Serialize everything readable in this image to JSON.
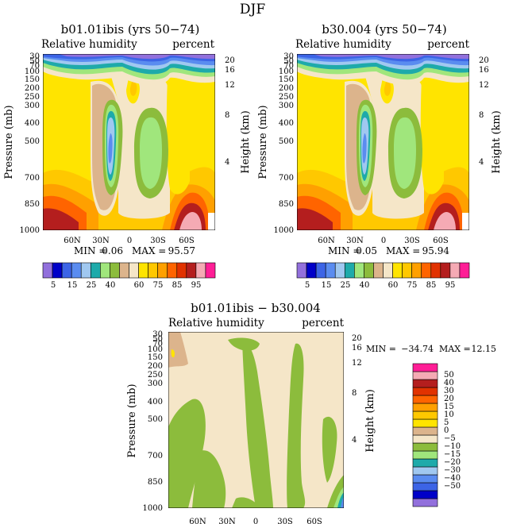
{
  "page_title": "DJF",
  "colors": {
    "full": [
      "#9270dc",
      "#0000c8",
      "#3c64e6",
      "#5a8cf0",
      "#a0c8f0",
      "#1eaaaa",
      "#a0e67c",
      "#8cbc3c",
      "#dcb48c",
      "#f5e6c8",
      "#ffe400",
      "#ffc800",
      "#ffa000",
      "#ff6400",
      "#e13200",
      "#b41e1e",
      "#f5aab4",
      "#ff1e96"
    ],
    "diff": [
      "#9270dc",
      "#0000c8",
      "#3c64e6",
      "#5a8cf0",
      "#a0c8f0",
      "#1eaaaa",
      "#a0e67c",
      "#8cbc3c",
      "#f5e6c8",
      "#dcb48c",
      "#ffe400",
      "#ffc800",
      "#ffa000",
      "#ff6400",
      "#e13200",
      "#b41e1e",
      "#f5aab4",
      "#ff1e96"
    ]
  },
  "chart_data": [
    {
      "type": "heatmap",
      "title": "b01.01ibis (yrs 50−74)",
      "subtitle_left": "Relative humidity",
      "subtitle_right": "percent",
      "ylabel": "Pressure (mb)",
      "ylabel_right": "Height (km)",
      "x_ticks": [
        "60N",
        "30N",
        "0",
        "30S",
        "60S"
      ],
      "y_ticks": [
        "30",
        "50",
        "70",
        "100",
        "150",
        "200",
        "250",
        "300",
        "400",
        "500",
        "700",
        "850",
        "1000"
      ],
      "y_right_ticks": [
        "20",
        "16",
        "12",
        "8",
        "4"
      ],
      "min_label": "MIN =",
      "min_value": "0.06",
      "max_label": "MAX =",
      "max_value": "95.57",
      "levels": [
        "5",
        "15",
        "25",
        "40",
        "60",
        "75",
        "85",
        "95"
      ]
    },
    {
      "type": "heatmap",
      "title": "b30.004 (yrs 50−74)",
      "subtitle_left": "Relative humidity",
      "subtitle_right": "percent",
      "ylabel": "Pressure (mb)",
      "ylabel_right": "Height (km)",
      "x_ticks": [
        "60N",
        "30N",
        "0",
        "30S",
        "60S"
      ],
      "y_ticks": [
        "30",
        "50",
        "70",
        "100",
        "150",
        "200",
        "250",
        "300",
        "400",
        "500",
        "700",
        "850",
        "1000"
      ],
      "y_right_ticks": [
        "20",
        "16",
        "12",
        "8",
        "4"
      ],
      "min_label": "MIN =",
      "min_value": "0.05",
      "max_label": "MAX =",
      "max_value": "95.94",
      "levels": [
        "5",
        "15",
        "25",
        "40",
        "60",
        "75",
        "85",
        "95"
      ]
    },
    {
      "type": "heatmap",
      "title": "b01.01ibis − b30.004",
      "subtitle_left": "Relative humidity",
      "subtitle_right": "percent",
      "ylabel": "Pressure (mb)",
      "ylabel_right": "Height (km)",
      "x_ticks": [
        "60N",
        "30N",
        "0",
        "30S",
        "60S"
      ],
      "y_ticks": [
        "30",
        "50",
        "70",
        "100",
        "150",
        "200",
        "250",
        "300",
        "400",
        "500",
        "700",
        "850",
        "1000"
      ],
      "y_right_ticks": [
        "20",
        "16",
        "12",
        "8",
        "4"
      ],
      "min_label": "MIN =",
      "min_value": "−34.74",
      "max_label": "MAX =",
      "max_value": "12.15",
      "levels": [
        "50",
        "40",
        "30",
        "20",
        "15",
        "10",
        "5",
        "0",
        "−5",
        "−10",
        "−15",
        "−20",
        "−30",
        "−40",
        "−50"
      ]
    }
  ]
}
